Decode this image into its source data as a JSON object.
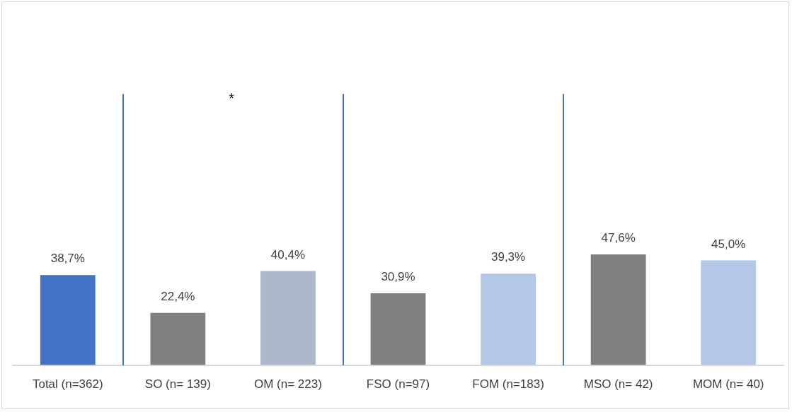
{
  "chart_data": {
    "type": "bar",
    "categories": [
      "Total (n=362)",
      "SO (n= 139)",
      "OM (n= 223)",
      "FSO (n=97)",
      "FOM (n=183)",
      "MSO (n= 42)",
      "MOM (n= 40)"
    ],
    "values": [
      38.7,
      22.4,
      40.4,
      30.9,
      39.3,
      47.6,
      45.0
    ],
    "colors": [
      "#4472c4",
      "#7f7f7f",
      "#adb9ca",
      "#7f7f7f",
      "#b4c7e7",
      "#7f7f7f",
      "#b4c7e7"
    ],
    "value_labels": [
      "38,7%",
      "22,4%",
      "40,4%",
      "30,9%",
      "39,3%",
      "47,6%",
      "45,0%"
    ],
    "annotations": [
      "*"
    ],
    "grid": false,
    "legend": false,
    "tick_labels": "x"
  }
}
